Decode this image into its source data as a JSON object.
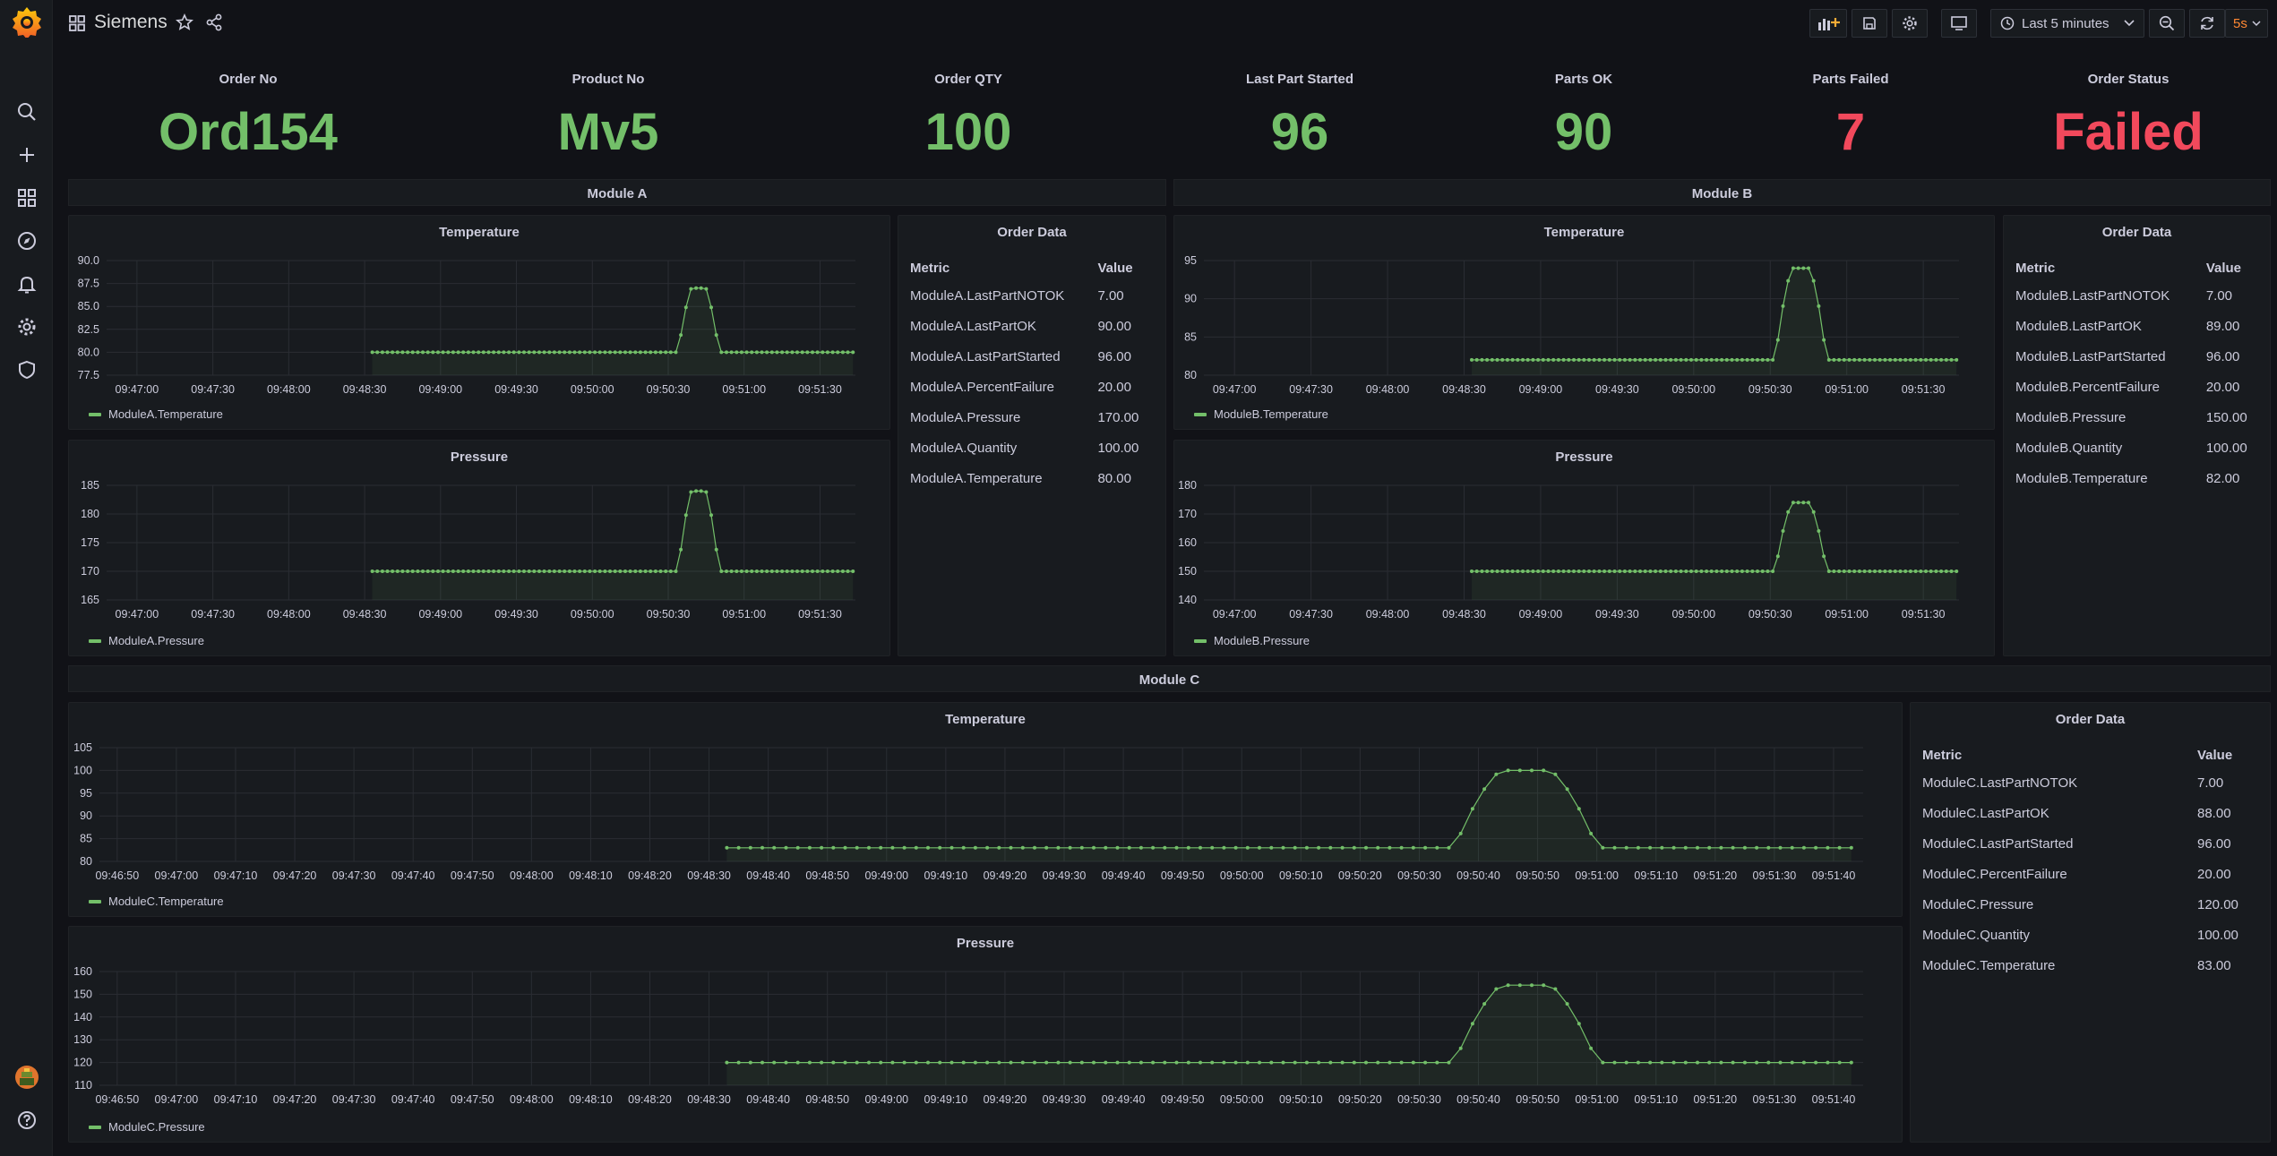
{
  "header": {
    "title": "Siemens",
    "time_range": "Last 5 minutes",
    "refresh_interval": "5s"
  },
  "stats": [
    {
      "title": "Order No",
      "value": "Ord154",
      "color": "#73bf69"
    },
    {
      "title": "Product No",
      "value": "Mv5",
      "color": "#73bf69"
    },
    {
      "title": "Order QTY",
      "value": "100",
      "color": "#73bf69"
    },
    {
      "title": "Last Part Started",
      "value": "96",
      "color": "#73bf69"
    },
    {
      "title": "Parts OK",
      "value": "90",
      "color": "#73bf69"
    },
    {
      "title": "Parts Failed",
      "value": "7",
      "color": "#f2495c"
    },
    {
      "title": "Order Status",
      "value": "Failed",
      "color": "#f2495c"
    }
  ],
  "rows": {
    "module_a": "Module A",
    "module_b": "Module B",
    "module_c": "Module C"
  },
  "tables": {
    "a": {
      "title": "Order Data",
      "headers": [
        "Metric",
        "Value"
      ],
      "rows": [
        [
          "ModuleA.LastPartNOTOK",
          "7.00"
        ],
        [
          "ModuleA.LastPartOK",
          "90.00"
        ],
        [
          "ModuleA.LastPartStarted",
          "96.00"
        ],
        [
          "ModuleA.PercentFailure",
          "20.00"
        ],
        [
          "ModuleA.Pressure",
          "170.00"
        ],
        [
          "ModuleA.Quantity",
          "100.00"
        ],
        [
          "ModuleA.Temperature",
          "80.00"
        ]
      ]
    },
    "b": {
      "title": "Order Data",
      "headers": [
        "Metric",
        "Value"
      ],
      "rows": [
        [
          "ModuleB.LastPartNOTOK",
          "7.00"
        ],
        [
          "ModuleB.LastPartOK",
          "89.00"
        ],
        [
          "ModuleB.LastPartStarted",
          "96.00"
        ],
        [
          "ModuleB.PercentFailure",
          "20.00"
        ],
        [
          "ModuleB.Pressure",
          "150.00"
        ],
        [
          "ModuleB.Quantity",
          "100.00"
        ],
        [
          "ModuleB.Temperature",
          "82.00"
        ]
      ]
    },
    "c": {
      "title": "Order Data",
      "headers": [
        "Metric",
        "Value"
      ],
      "rows": [
        [
          "ModuleC.LastPartNOTOK",
          "7.00"
        ],
        [
          "ModuleC.LastPartOK",
          "88.00"
        ],
        [
          "ModuleC.LastPartStarted",
          "96.00"
        ],
        [
          "ModuleC.PercentFailure",
          "20.00"
        ],
        [
          "ModuleC.Pressure",
          "120.00"
        ],
        [
          "ModuleC.Quantity",
          "100.00"
        ],
        [
          "ModuleC.Temperature",
          "83.00"
        ]
      ]
    }
  },
  "chart_data": [
    {
      "id": "a-temp",
      "type": "line",
      "title": "Temperature",
      "series": [
        {
          "name": "ModuleA.Temperature",
          "color": "#73bf69"
        }
      ],
      "x_ticks": [
        "09:47:00",
        "09:47:30",
        "09:48:00",
        "09:48:30",
        "09:49:00",
        "09:49:30",
        "09:50:00",
        "09:50:30",
        "09:51:00",
        "09:51:30"
      ],
      "y_ticks": [
        "90.0",
        "87.5",
        "85.0",
        "82.5",
        "80.0",
        "77.5"
      ],
      "ylim": [
        77.5,
        90
      ],
      "x_start": "09:46:48",
      "x_end": "09:51:44",
      "data_start": "09:48:33",
      "data_end": "09:51:43",
      "baseline": 80,
      "peak": 87,
      "peak_at": "09:50:42",
      "peak_halfwidth_s": 8,
      "step_s": 2
    },
    {
      "id": "a-press",
      "type": "line",
      "title": "Pressure",
      "series": [
        {
          "name": "ModuleA.Pressure",
          "color": "#73bf69"
        }
      ],
      "x_ticks": [
        "09:47:00",
        "09:47:30",
        "09:48:00",
        "09:48:30",
        "09:49:00",
        "09:49:30",
        "09:50:00",
        "09:50:30",
        "09:51:00",
        "09:51:30"
      ],
      "y_ticks": [
        "185",
        "180",
        "175",
        "170",
        "165"
      ],
      "ylim": [
        165,
        185
      ],
      "x_start": "09:46:48",
      "x_end": "09:51:44",
      "data_start": "09:48:33",
      "data_end": "09:51:43",
      "baseline": 170,
      "peak": 184,
      "peak_at": "09:50:42",
      "peak_halfwidth_s": 8,
      "step_s": 2
    },
    {
      "id": "b-temp",
      "type": "line",
      "title": "Temperature",
      "series": [
        {
          "name": "ModuleB.Temperature",
          "color": "#73bf69"
        }
      ],
      "x_ticks": [
        "09:47:00",
        "09:47:30",
        "09:48:00",
        "09:48:30",
        "09:49:00",
        "09:49:30",
        "09:50:00",
        "09:50:30",
        "09:51:00",
        "09:51:30"
      ],
      "y_ticks": [
        "95",
        "90",
        "85",
        "80"
      ],
      "ylim": [
        80,
        95
      ],
      "x_start": "09:46:48",
      "x_end": "09:51:44",
      "data_start": "09:48:33",
      "data_end": "09:51:43",
      "baseline": 82,
      "peak": 94,
      "peak_at": "09:50:42",
      "peak_halfwidth_s": 10,
      "step_s": 2
    },
    {
      "id": "b-press",
      "type": "line",
      "title": "Pressure",
      "series": [
        {
          "name": "ModuleB.Pressure",
          "color": "#73bf69"
        }
      ],
      "x_ticks": [
        "09:47:00",
        "09:47:30",
        "09:48:00",
        "09:48:30",
        "09:49:00",
        "09:49:30",
        "09:50:00",
        "09:50:30",
        "09:51:00",
        "09:51:30"
      ],
      "y_ticks": [
        "180",
        "170",
        "160",
        "150",
        "140"
      ],
      "ylim": [
        140,
        180
      ],
      "x_start": "09:46:48",
      "x_end": "09:51:44",
      "data_start": "09:48:33",
      "data_end": "09:51:43",
      "baseline": 150,
      "peak": 174,
      "peak_at": "09:50:42",
      "peak_halfwidth_s": 10,
      "step_s": 2
    },
    {
      "id": "c-temp",
      "type": "line",
      "title": "Temperature",
      "series": [
        {
          "name": "ModuleC.Temperature",
          "color": "#73bf69"
        }
      ],
      "x_ticks": [
        "09:46:50",
        "09:47:00",
        "09:47:10",
        "09:47:20",
        "09:47:30",
        "09:47:40",
        "09:47:50",
        "09:48:00",
        "09:48:10",
        "09:48:20",
        "09:48:30",
        "09:48:40",
        "09:48:50",
        "09:49:00",
        "09:49:10",
        "09:49:20",
        "09:49:30",
        "09:49:40",
        "09:49:50",
        "09:50:00",
        "09:50:10",
        "09:50:20",
        "09:50:30",
        "09:50:40",
        "09:50:50",
        "09:51:00",
        "09:51:10",
        "09:51:20",
        "09:51:30",
        "09:51:40"
      ],
      "y_ticks": [
        "105",
        "100",
        "95",
        "90",
        "85",
        "80"
      ],
      "ylim": [
        80,
        105
      ],
      "x_start": "09:46:47",
      "x_end": "09:51:45",
      "data_start": "09:48:33",
      "data_end": "09:51:44",
      "baseline": 83,
      "peak": 100,
      "peak_at": "09:50:48",
      "peak_halfwidth_s": 12,
      "step_s": 2
    },
    {
      "id": "c-press",
      "type": "line",
      "title": "Pressure",
      "series": [
        {
          "name": "ModuleC.Pressure",
          "color": "#73bf69"
        }
      ],
      "x_ticks": [
        "09:46:50",
        "09:47:00",
        "09:47:10",
        "09:47:20",
        "09:47:30",
        "09:47:40",
        "09:47:50",
        "09:48:00",
        "09:48:10",
        "09:48:20",
        "09:48:30",
        "09:48:40",
        "09:48:50",
        "09:49:00",
        "09:49:10",
        "09:49:20",
        "09:49:30",
        "09:49:40",
        "09:49:50",
        "09:50:00",
        "09:50:10",
        "09:50:20",
        "09:50:30",
        "09:50:40",
        "09:50:50",
        "09:51:00",
        "09:51:10",
        "09:51:20",
        "09:51:30",
        "09:51:40"
      ],
      "y_ticks": [
        "160",
        "150",
        "140",
        "130",
        "120",
        "110"
      ],
      "ylim": [
        110,
        160
      ],
      "x_start": "09:46:47",
      "x_end": "09:51:45",
      "data_start": "09:48:33",
      "data_end": "09:51:44",
      "baseline": 120,
      "peak": 154,
      "peak_at": "09:50:48",
      "peak_halfwidth_s": 12,
      "step_s": 2
    }
  ]
}
